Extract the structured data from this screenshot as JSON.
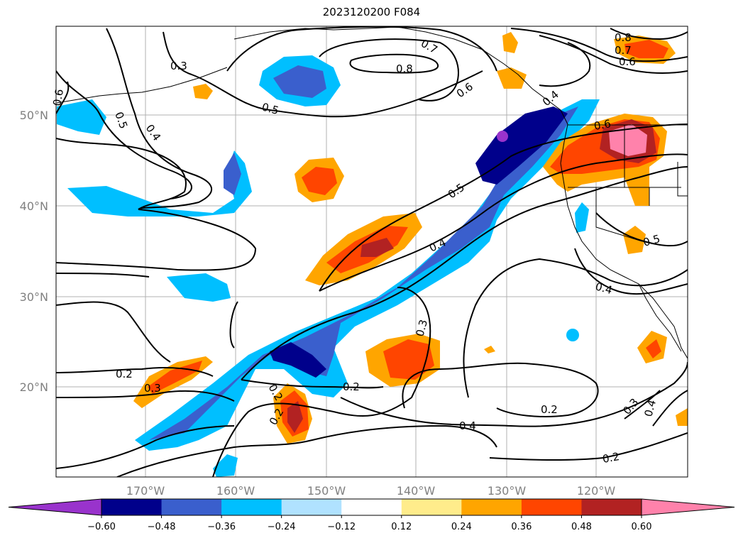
{
  "title": "2023120200 F084",
  "lat_labels": [
    "50°N",
    "40°N",
    "30°N",
    "20°N"
  ],
  "lon_labels": [
    "170°W",
    "160°W",
    "150°W",
    "140°W",
    "130°W",
    "120°W"
  ],
  "colorbar": {
    "labels": [
      "−0.60",
      "−0.48",
      "−0.36",
      "−0.24",
      "−0.12",
      "0.12",
      "0.24",
      "0.36",
      "0.48",
      "0.60"
    ],
    "colors": [
      "#9933cc",
      "#00008b",
      "#3a5fcd",
      "#00bfff",
      "#b0e2ff",
      "#ffffff",
      "#ffec8b",
      "#ffa500",
      "#ff4500",
      "#b22222",
      "#ff82ab"
    ]
  },
  "contour_labels": [
    "0.3",
    "0.5",
    "0.4",
    "0.6",
    "0.5",
    "0.8",
    "0.7",
    "0.6",
    "0.8",
    "0.7",
    "0.6",
    "0.4",
    "0.6",
    "0.5",
    "0.4",
    "0.5",
    "0.4",
    "0.3",
    "0.2",
    "0.3",
    "0.2",
    "0.2",
    "0.2",
    "0.4",
    "0.2",
    "0.2",
    "0.3",
    "0.4"
  ]
}
